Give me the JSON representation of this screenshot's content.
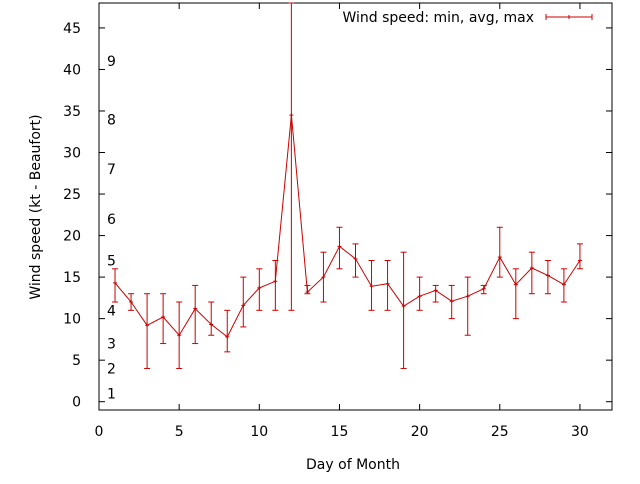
{
  "chart_data": {
    "type": "line",
    "xlabel": "Day of Month",
    "ylabel": "Wind speed (kt - Beaufort)",
    "xlim": [
      0,
      32
    ],
    "ylim": [
      -1,
      48
    ],
    "x_ticks": [
      0,
      5,
      10,
      15,
      20,
      25,
      30
    ],
    "y_ticks": [
      0,
      5,
      10,
      15,
      20,
      25,
      30,
      35,
      40,
      45
    ],
    "grid": false,
    "legend_position": "top-right",
    "beaufort_labels": [
      {
        "label": "1",
        "y": 1
      },
      {
        "label": "2",
        "y": 4
      },
      {
        "label": "3",
        "y": 7
      },
      {
        "label": "4",
        "y": 11
      },
      {
        "label": "5",
        "y": 17
      },
      {
        "label": "6",
        "y": 22
      },
      {
        "label": "7",
        "y": 28
      },
      {
        "label": "8",
        "y": 34
      },
      {
        "label": "9",
        "y": 41
      }
    ],
    "series": [
      {
        "name": "Wind speed: min, avg, max",
        "color": "#cc0000",
        "x": [
          1,
          2,
          3,
          4,
          5,
          6,
          7,
          8,
          9,
          10,
          11,
          12,
          13,
          14,
          15,
          16,
          17,
          18,
          19,
          20,
          21,
          22,
          23,
          24,
          25,
          26,
          27,
          28,
          29,
          30
        ],
        "avg": [
          14.3,
          12.0,
          9.2,
          10.2,
          8.0,
          11.2,
          9.3,
          7.8,
          11.6,
          13.7,
          14.5,
          34.5,
          13.2,
          15.0,
          18.7,
          17.2,
          13.9,
          14.2,
          11.5,
          12.7,
          13.4,
          12.1,
          12.7,
          13.6,
          17.4,
          14.1,
          16.1,
          15.2,
          14.1,
          17.0
        ],
        "min": [
          12,
          11,
          4,
          7,
          4,
          7,
          8,
          6,
          9,
          11,
          11,
          11,
          13,
          12,
          16,
          15,
          11,
          11,
          4,
          11,
          12,
          10,
          8,
          13,
          15,
          10,
          13,
          13,
          12,
          16
        ],
        "max": [
          16,
          13,
          13,
          13,
          12,
          14,
          12,
          11,
          15,
          16,
          17,
          48,
          14,
          18,
          21,
          19,
          17,
          17,
          18,
          15,
          14,
          14,
          15,
          14,
          21,
          16,
          18,
          17,
          16,
          19
        ]
      }
    ]
  }
}
